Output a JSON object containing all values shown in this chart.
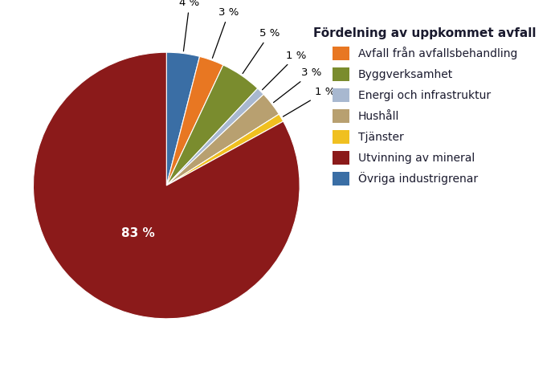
{
  "title": "Fördelning av uppkommet avfall",
  "slices": [
    {
      "label": "Avfall från avfallsbehandling",
      "value": 3,
      "color": "#E87722",
      "pct_label": "3 %"
    },
    {
      "label": "Byggverksamhet",
      "value": 5,
      "color": "#7A8C2E",
      "pct_label": "5 %"
    },
    {
      "label": "Energi och infrastruktur",
      "value": 1,
      "color": "#A8B8D0",
      "pct_label": "1 %"
    },
    {
      "label": "Hushåll",
      "value": 3,
      "color": "#B8A070",
      "pct_label": "3 %"
    },
    {
      "label": "Tjänster",
      "value": 1,
      "color": "#F0C020",
      "pct_label": "1 %"
    },
    {
      "label": "Utvinning av mineral",
      "value": 83,
      "color": "#8B1A1A",
      "pct_label": "83 %"
    },
    {
      "label": "Övriga industrigrenar",
      "value": 4,
      "color": "#3A6EA5",
      "pct_label": "4 %"
    }
  ],
  "label_fontsize": 9.5,
  "title_fontsize": 11,
  "legend_fontsize": 10,
  "bg_color": "#ffffff",
  "pie_order": [
    6,
    0,
    1,
    2,
    3,
    4,
    5
  ]
}
